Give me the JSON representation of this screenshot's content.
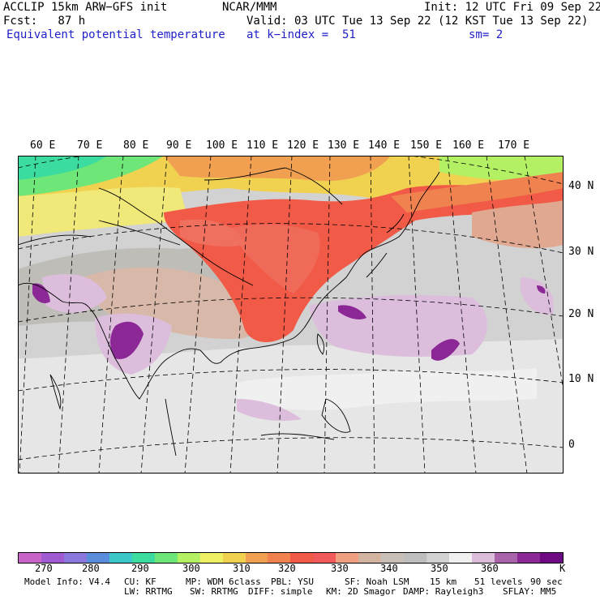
{
  "header": {
    "model": "ACCLIP 15km ARW−GFS init",
    "org": "NCAR/MMM",
    "init": "Init: 12 UTC Fri 09 Sep 22",
    "fcst": "Fcst:   87 h",
    "valid": "Valid: 03 UTC Tue 13 Sep 22 (12 KST Tue 13 Sep 22)",
    "field": "Equivalent potential temperature",
    "level": "at k−index =  51",
    "smooth": "sm= 2"
  },
  "map": {
    "lon_labels": [
      "60 E",
      "70 E",
      "80 E",
      "90 E",
      "100 E",
      "110 E",
      "120 E",
      "130 E",
      "140 E",
      "150 E",
      "160 E",
      "170 E"
    ],
    "lat_labels": [
      "40 N",
      "30 N",
      "20 N",
      "10 N",
      "0"
    ]
  },
  "colorbar": {
    "colors": [
      "#c864c8",
      "#a05ad2",
      "#8c78dc",
      "#5a8cdc",
      "#3cc8c8",
      "#3cdca0",
      "#6ee678",
      "#b4f064",
      "#f0f064",
      "#f0d250",
      "#f0a050",
      "#f08250",
      "#f05a46",
      "#f05a5a",
      "#f0a080",
      "#d2b4a0",
      "#c8c0b8",
      "#bebebe",
      "#d2d2d2",
      "#f0f0f0",
      "#dcbedc",
      "#aa64aa",
      "#8c2896",
      "#6e0a82"
    ],
    "tick_labels": [
      "270",
      "280",
      "290",
      "300",
      "310",
      "320",
      "330",
      "340",
      "350",
      "360"
    ],
    "unit": "K"
  },
  "footer": {
    "line1": [
      "Model Info: V4.4",
      "CU: KF",
      "MP: WDM 6class",
      "PBL: YSU",
      "SF: Noah LSM",
      "15 km",
      "51 levels",
      "90 sec"
    ],
    "line2": [
      "LW: RRTMG",
      "SW: RRTMG",
      "DIFF: simple",
      "KM: 2D Smagor",
      "DAMP: Rayleigh3",
      "SFLAY: MM5"
    ]
  }
}
